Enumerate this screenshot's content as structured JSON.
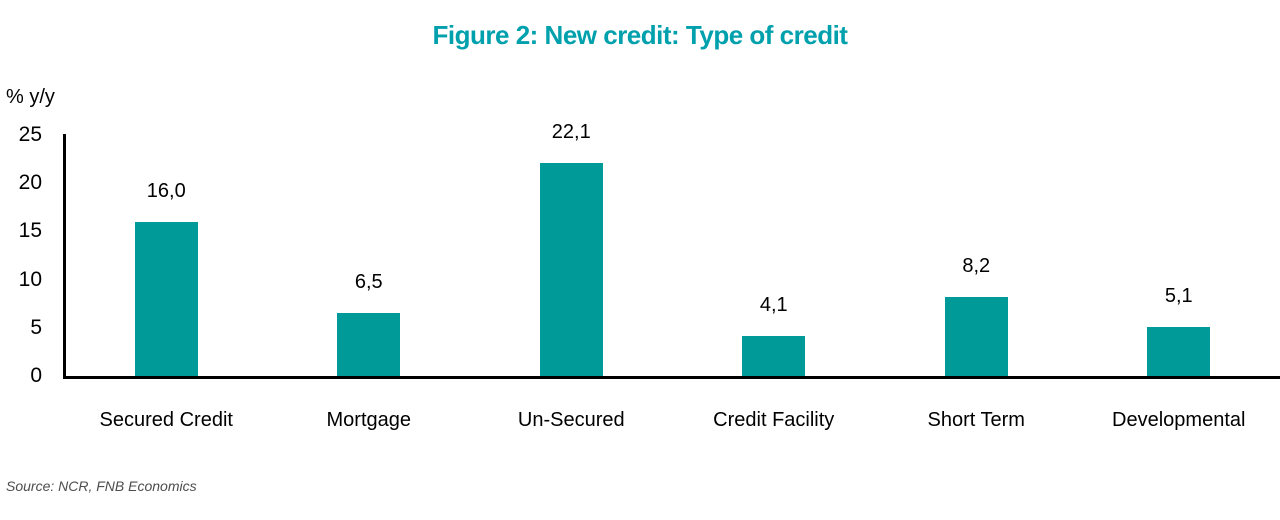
{
  "title": "Figure 2: New credit: Type of credit",
  "source_note": "Source: NCR, FNB Economics",
  "colors": {
    "title": "#00A0AD",
    "bar": "#009A98",
    "axis": "#000000",
    "source_text": "#4d4d4d"
  },
  "chart_data": {
    "type": "bar",
    "title": "Figure 2: New credit: Type of credit",
    "categories": [
      "Secured Credit",
      "Mortgage",
      "Un-Secured",
      "Credit Facility",
      "Short Term",
      "Developmental"
    ],
    "values": [
      16.0,
      6.5,
      22.1,
      4.1,
      8.2,
      5.1
    ],
    "value_labels": [
      "16,0",
      "6,5",
      "22,1",
      "4,1",
      "8,2",
      "5,1"
    ],
    "xlabel": "",
    "ylabel": "% y/y",
    "ylim": [
      0,
      25
    ],
    "y_ticks": [
      0,
      5,
      10,
      15,
      20,
      25
    ],
    "grid": false,
    "legend_position": "none",
    "bar_color": "#009A98",
    "decimal_separator": ","
  }
}
